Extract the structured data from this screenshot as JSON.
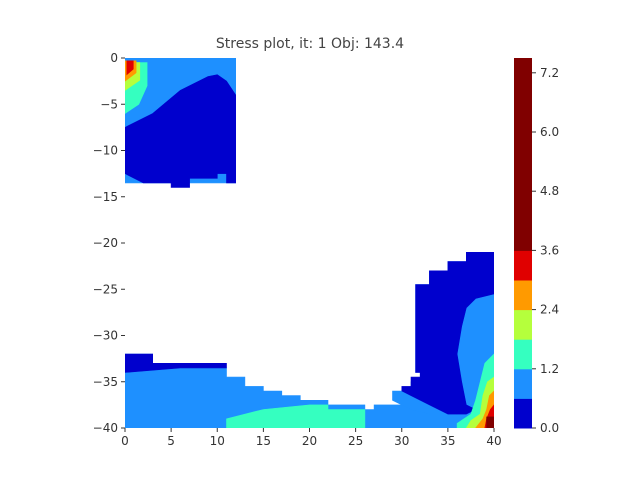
{
  "chart_data": {
    "type": "heatmap",
    "title": "Stress plot, it: 1 Obj: 143.4",
    "xlabel": "",
    "ylabel": "",
    "xlim": [
      0,
      40
    ],
    "ylim": [
      -40,
      0
    ],
    "grid": false,
    "x_ticks": [
      0,
      5,
      10,
      15,
      20,
      25,
      30,
      35,
      40
    ],
    "y_ticks": [
      0,
      -5,
      -10,
      -15,
      -20,
      -25,
      -30,
      -35,
      -40
    ],
    "x_tick_labels": [
      "0",
      "5",
      "10",
      "15",
      "20",
      "25",
      "30",
      "35",
      "40"
    ],
    "y_tick_labels": [
      "0",
      "−5",
      "−10",
      "−15",
      "−20",
      "−25",
      "−30",
      "−35",
      "−40"
    ],
    "colorbar": {
      "placement": "right",
      "levels": [
        0.0,
        0.6,
        1.2,
        1.8,
        2.4,
        3.0,
        3.6,
        4.2,
        4.8,
        5.4,
        6.0,
        6.6,
        7.5
      ],
      "colors": [
        "#0000cd",
        "#1e90ff",
        "#35ffc0",
        "#b5ff3c",
        "#ff9a00",
        "#e00000",
        "#800000",
        "#800000",
        "#800000",
        "#800000",
        "#800000",
        "#800000"
      ],
      "tick_values": [
        0.0,
        1.2,
        2.4,
        3.6,
        4.8,
        6.0,
        7.2
      ],
      "tick_labels": [
        "0.0",
        "1.2",
        "2.4",
        "3.6",
        "4.8",
        "6.0",
        "7.2"
      ]
    },
    "regions": [
      {
        "level": 1,
        "polygon": [
          [
            0,
            0
          ],
          [
            12,
            0
          ],
          [
            12,
            -13.5
          ],
          [
            0,
            -13.5
          ]
        ]
      },
      {
        "level": 0,
        "polygon": [
          [
            0,
            -7.5
          ],
          [
            3,
            -6
          ],
          [
            6,
            -3.5
          ],
          [
            9,
            -2
          ],
          [
            10,
            -1.8
          ],
          [
            11,
            -2.5
          ],
          [
            12,
            -4
          ],
          [
            12,
            -13.5
          ],
          [
            11,
            -13.5
          ],
          [
            11,
            -12.5
          ],
          [
            10,
            -12.5
          ],
          [
            10,
            -13
          ],
          [
            7,
            -13
          ],
          [
            7,
            -14
          ],
          [
            5,
            -14
          ],
          [
            5,
            -13.5
          ],
          [
            2,
            -13.5
          ],
          [
            0,
            -12.5
          ]
        ]
      },
      {
        "level": 2,
        "polygon": [
          [
            0,
            -0.5
          ],
          [
            2.4,
            -0.5
          ],
          [
            2.4,
            -3
          ],
          [
            1.5,
            -5
          ],
          [
            0,
            -6
          ]
        ]
      },
      {
        "level": 3,
        "polygon": [
          [
            0,
            -0.5
          ],
          [
            1.6,
            -0.5
          ],
          [
            1.6,
            -2.4
          ],
          [
            0,
            -3.5
          ]
        ]
      },
      {
        "level": 4,
        "polygon": [
          [
            0,
            -0.3
          ],
          [
            1.2,
            -0.3
          ],
          [
            1.2,
            -1.6
          ],
          [
            0,
            -2.5
          ]
        ]
      },
      {
        "level": 5,
        "polygon": [
          [
            0.2,
            -0.3
          ],
          [
            0.9,
            -0.3
          ],
          [
            0.9,
            -1.2
          ],
          [
            0.2,
            -1.8
          ]
        ]
      },
      {
        "level": 1,
        "polygon": [
          [
            0,
            -32
          ],
          [
            3,
            -32
          ],
          [
            3,
            -33.5
          ],
          [
            11,
            -33.5
          ],
          [
            11,
            -34.5
          ],
          [
            13,
            -34.5
          ],
          [
            13,
            -35.5
          ],
          [
            15,
            -35.5
          ],
          [
            15,
            -36
          ],
          [
            17,
            -36
          ],
          [
            17,
            -36.5
          ],
          [
            19,
            -36.5
          ],
          [
            19,
            -37
          ],
          [
            22,
            -37
          ],
          [
            22,
            -37.5
          ],
          [
            26,
            -37.5
          ],
          [
            26,
            -38
          ],
          [
            27,
            -38
          ],
          [
            27,
            -37.5
          ],
          [
            30,
            -37.5
          ],
          [
            30,
            -37
          ],
          [
            32,
            -37
          ],
          [
            32,
            -36.5
          ],
          [
            38,
            -36.5
          ],
          [
            38,
            -40
          ],
          [
            0,
            -40
          ]
        ]
      },
      {
        "level": 0,
        "polygon": [
          [
            0,
            -32
          ],
          [
            3,
            -32
          ],
          [
            3,
            -33
          ],
          [
            11,
            -33
          ],
          [
            11,
            -33.5
          ],
          [
            6,
            -33.5
          ],
          [
            0,
            -34
          ]
        ]
      },
      {
        "level": 2,
        "polygon": [
          [
            11,
            -40
          ],
          [
            11,
            -39
          ],
          [
            15,
            -38
          ],
          [
            20,
            -37.5
          ],
          [
            22,
            -37.5
          ],
          [
            22,
            -38
          ],
          [
            26,
            -38
          ],
          [
            26,
            -40
          ]
        ]
      },
      {
        "level": 1,
        "polygon": [
          [
            31.5,
            -24.5
          ],
          [
            33,
            -24.5
          ],
          [
            33,
            -23
          ],
          [
            35,
            -23
          ],
          [
            35,
            -22
          ],
          [
            37,
            -22
          ],
          [
            37,
            -21
          ],
          [
            40,
            -21
          ],
          [
            40,
            -40
          ],
          [
            36,
            -40
          ],
          [
            36,
            -38.5
          ],
          [
            33,
            -38.5
          ],
          [
            31,
            -38
          ],
          [
            29,
            -37
          ],
          [
            29,
            -36
          ],
          [
            31,
            -36
          ],
          [
            31,
            -35
          ],
          [
            32,
            -35
          ],
          [
            32,
            -34
          ],
          [
            31.5,
            -34
          ]
        ]
      },
      {
        "level": 0,
        "polygon": [
          [
            31.5,
            -24.5
          ],
          [
            33,
            -24.5
          ],
          [
            33,
            -23
          ],
          [
            35,
            -23
          ],
          [
            35,
            -22
          ],
          [
            37,
            -22
          ],
          [
            37,
            -21
          ],
          [
            40,
            -21
          ],
          [
            40,
            -25.5
          ],
          [
            38,
            -26
          ],
          [
            37,
            -27
          ],
          [
            36.5,
            -29
          ],
          [
            36,
            -32
          ],
          [
            36.5,
            -35
          ],
          [
            37,
            -37.5
          ],
          [
            38,
            -38
          ],
          [
            37,
            -38.5
          ],
          [
            35,
            -38.5
          ],
          [
            33,
            -37.5
          ],
          [
            31,
            -36.5
          ],
          [
            30,
            -36
          ],
          [
            30,
            -35.5
          ],
          [
            31,
            -35.5
          ],
          [
            31,
            -34.5
          ],
          [
            32,
            -34.5
          ],
          [
            32,
            -34
          ],
          [
            31.5,
            -34
          ]
        ]
      },
      {
        "level": 2,
        "polygon": [
          [
            40,
            -32
          ],
          [
            39,
            -33
          ],
          [
            38.5,
            -35
          ],
          [
            38,
            -37
          ],
          [
            37.5,
            -38.5
          ],
          [
            36,
            -39.5
          ],
          [
            36,
            -40
          ],
          [
            40,
            -40
          ]
        ]
      },
      {
        "level": 3,
        "polygon": [
          [
            40,
            -34.5
          ],
          [
            39.3,
            -35
          ],
          [
            38.8,
            -36.5
          ],
          [
            38.5,
            -38.5
          ],
          [
            37.5,
            -39.2
          ],
          [
            37,
            -40
          ],
          [
            40,
            -40
          ]
        ]
      },
      {
        "level": 4,
        "polygon": [
          [
            40,
            -36
          ],
          [
            39.5,
            -36.5
          ],
          [
            39.2,
            -38
          ],
          [
            38.8,
            -39
          ],
          [
            38,
            -40
          ],
          [
            40,
            -40
          ]
        ]
      },
      {
        "level": 5,
        "polygon": [
          [
            40,
            -37.5
          ],
          [
            39.6,
            -38
          ],
          [
            39.2,
            -39
          ],
          [
            39,
            -40
          ],
          [
            40,
            -40
          ]
        ]
      },
      {
        "level": 6,
        "polygon": [
          [
            40,
            -38.8
          ],
          [
            39.2,
            -38.8
          ],
          [
            39.2,
            -40
          ],
          [
            40,
            -40
          ]
        ]
      }
    ]
  }
}
